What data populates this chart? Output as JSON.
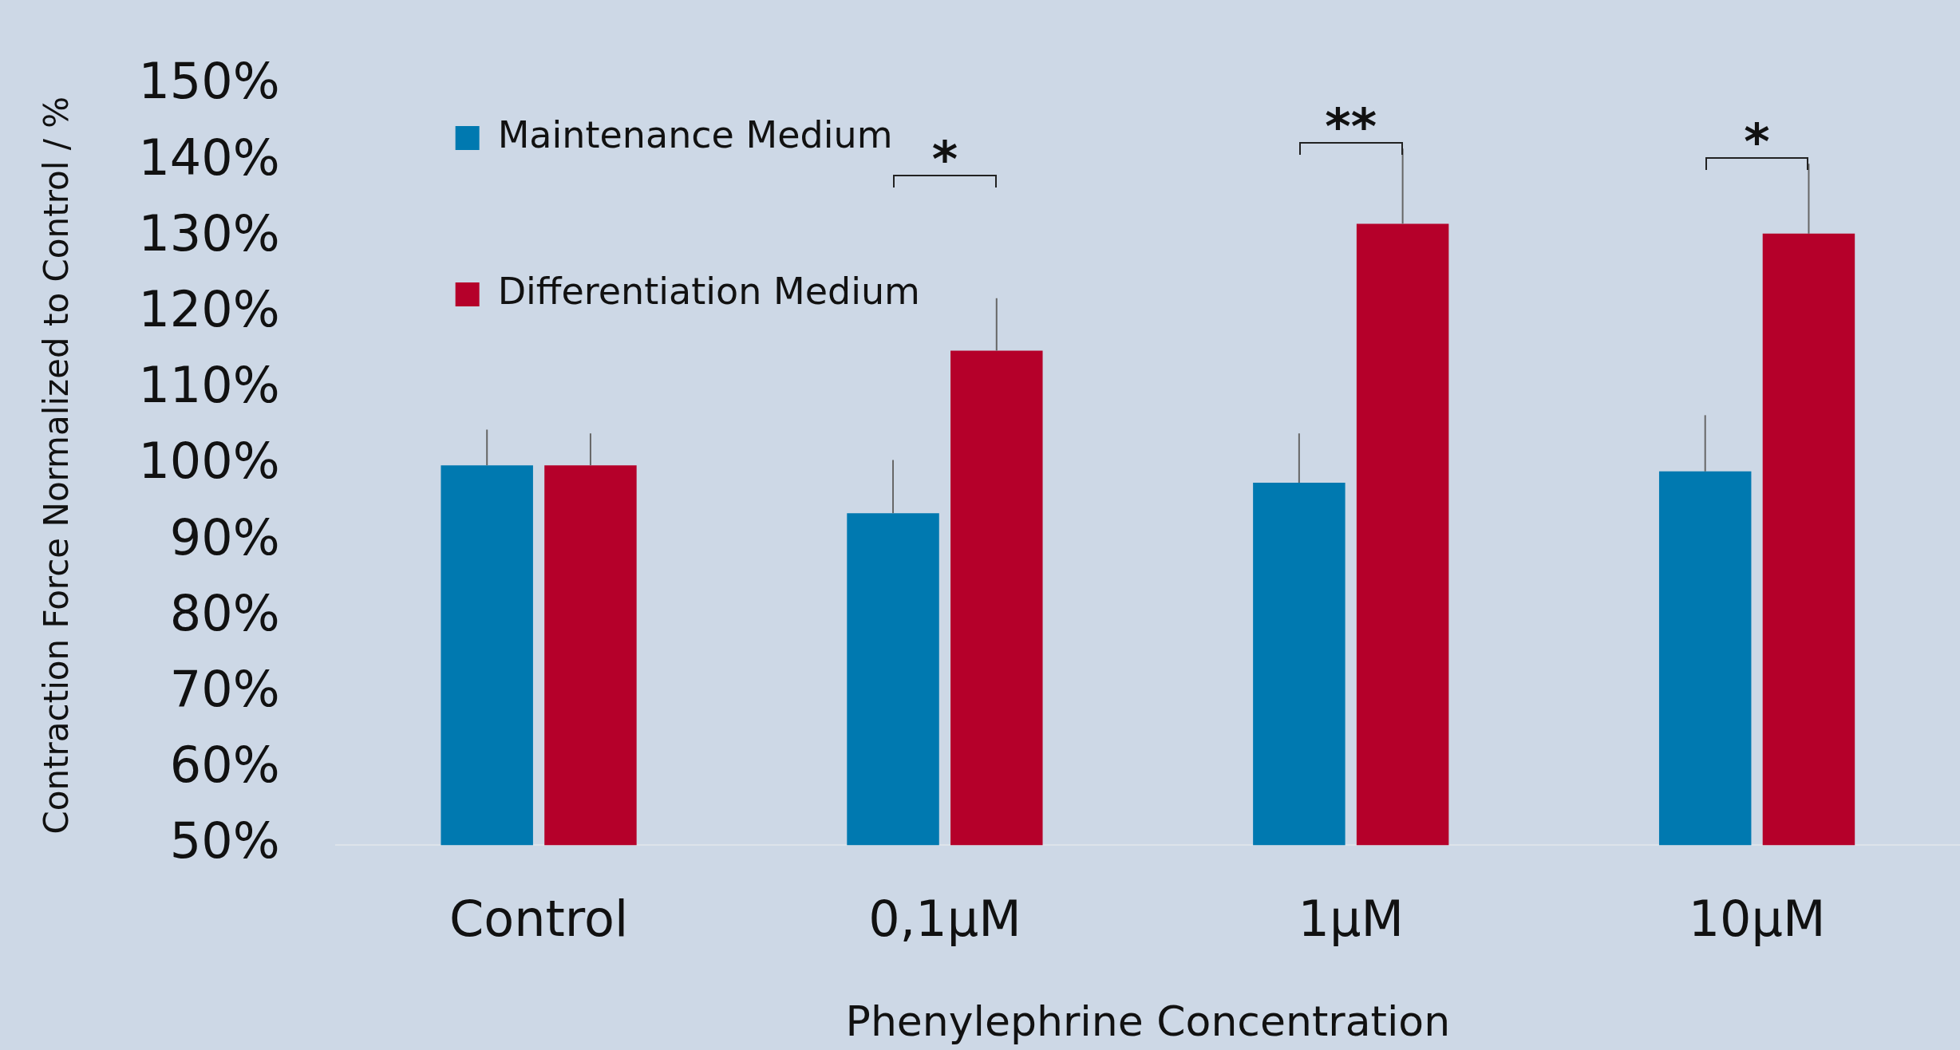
{
  "chart_data": {
    "type": "bar",
    "xlabel": "Phenylephrine Concentration",
    "ylabel": "Contraction Force Normalized to Control / %",
    "categories": [
      "Control",
      "0,1µM",
      "1µM",
      "10µM"
    ],
    "series": [
      {
        "name": "Maintenance Medium",
        "color": "#0079b0",
        "values": [
          100,
          93.7,
          97.7,
          99.2
        ],
        "errors": [
          [
            100,
            104.7
          ],
          [
            93.7,
            100.7
          ],
          [
            97.7,
            104.2
          ],
          [
            99.2,
            106.6
          ]
        ]
      },
      {
        "name": "Differentiation Medium",
        "color": "#b5002a",
        "values": [
          100,
          115.1,
          131.8,
          130.5
        ],
        "errors": [
          [
            100,
            104.2
          ],
          [
            115.1,
            122.0
          ],
          [
            131.8,
            141.7
          ],
          [
            130.5,
            139.7
          ]
        ]
      }
    ],
    "ylim": [
      50,
      150
    ],
    "yticks": [
      {
        "value": 50,
        "label": "50%"
      },
      {
        "value": 60,
        "label": "60%"
      },
      {
        "value": 70,
        "label": "70%"
      },
      {
        "value": 80,
        "label": "80%"
      },
      {
        "value": 90,
        "label": "90%"
      },
      {
        "value": 100,
        "label": "100%"
      },
      {
        "value": 110,
        "label": "110%"
      },
      {
        "value": 120,
        "label": "120%"
      },
      {
        "value": 130,
        "label": "130%"
      },
      {
        "value": 140,
        "label": "140%"
      },
      {
        "value": 150,
        "label": "150%"
      }
    ],
    "annotations": [
      "*",
      "**",
      "*"
    ],
    "grid": false,
    "legend": "top"
  }
}
